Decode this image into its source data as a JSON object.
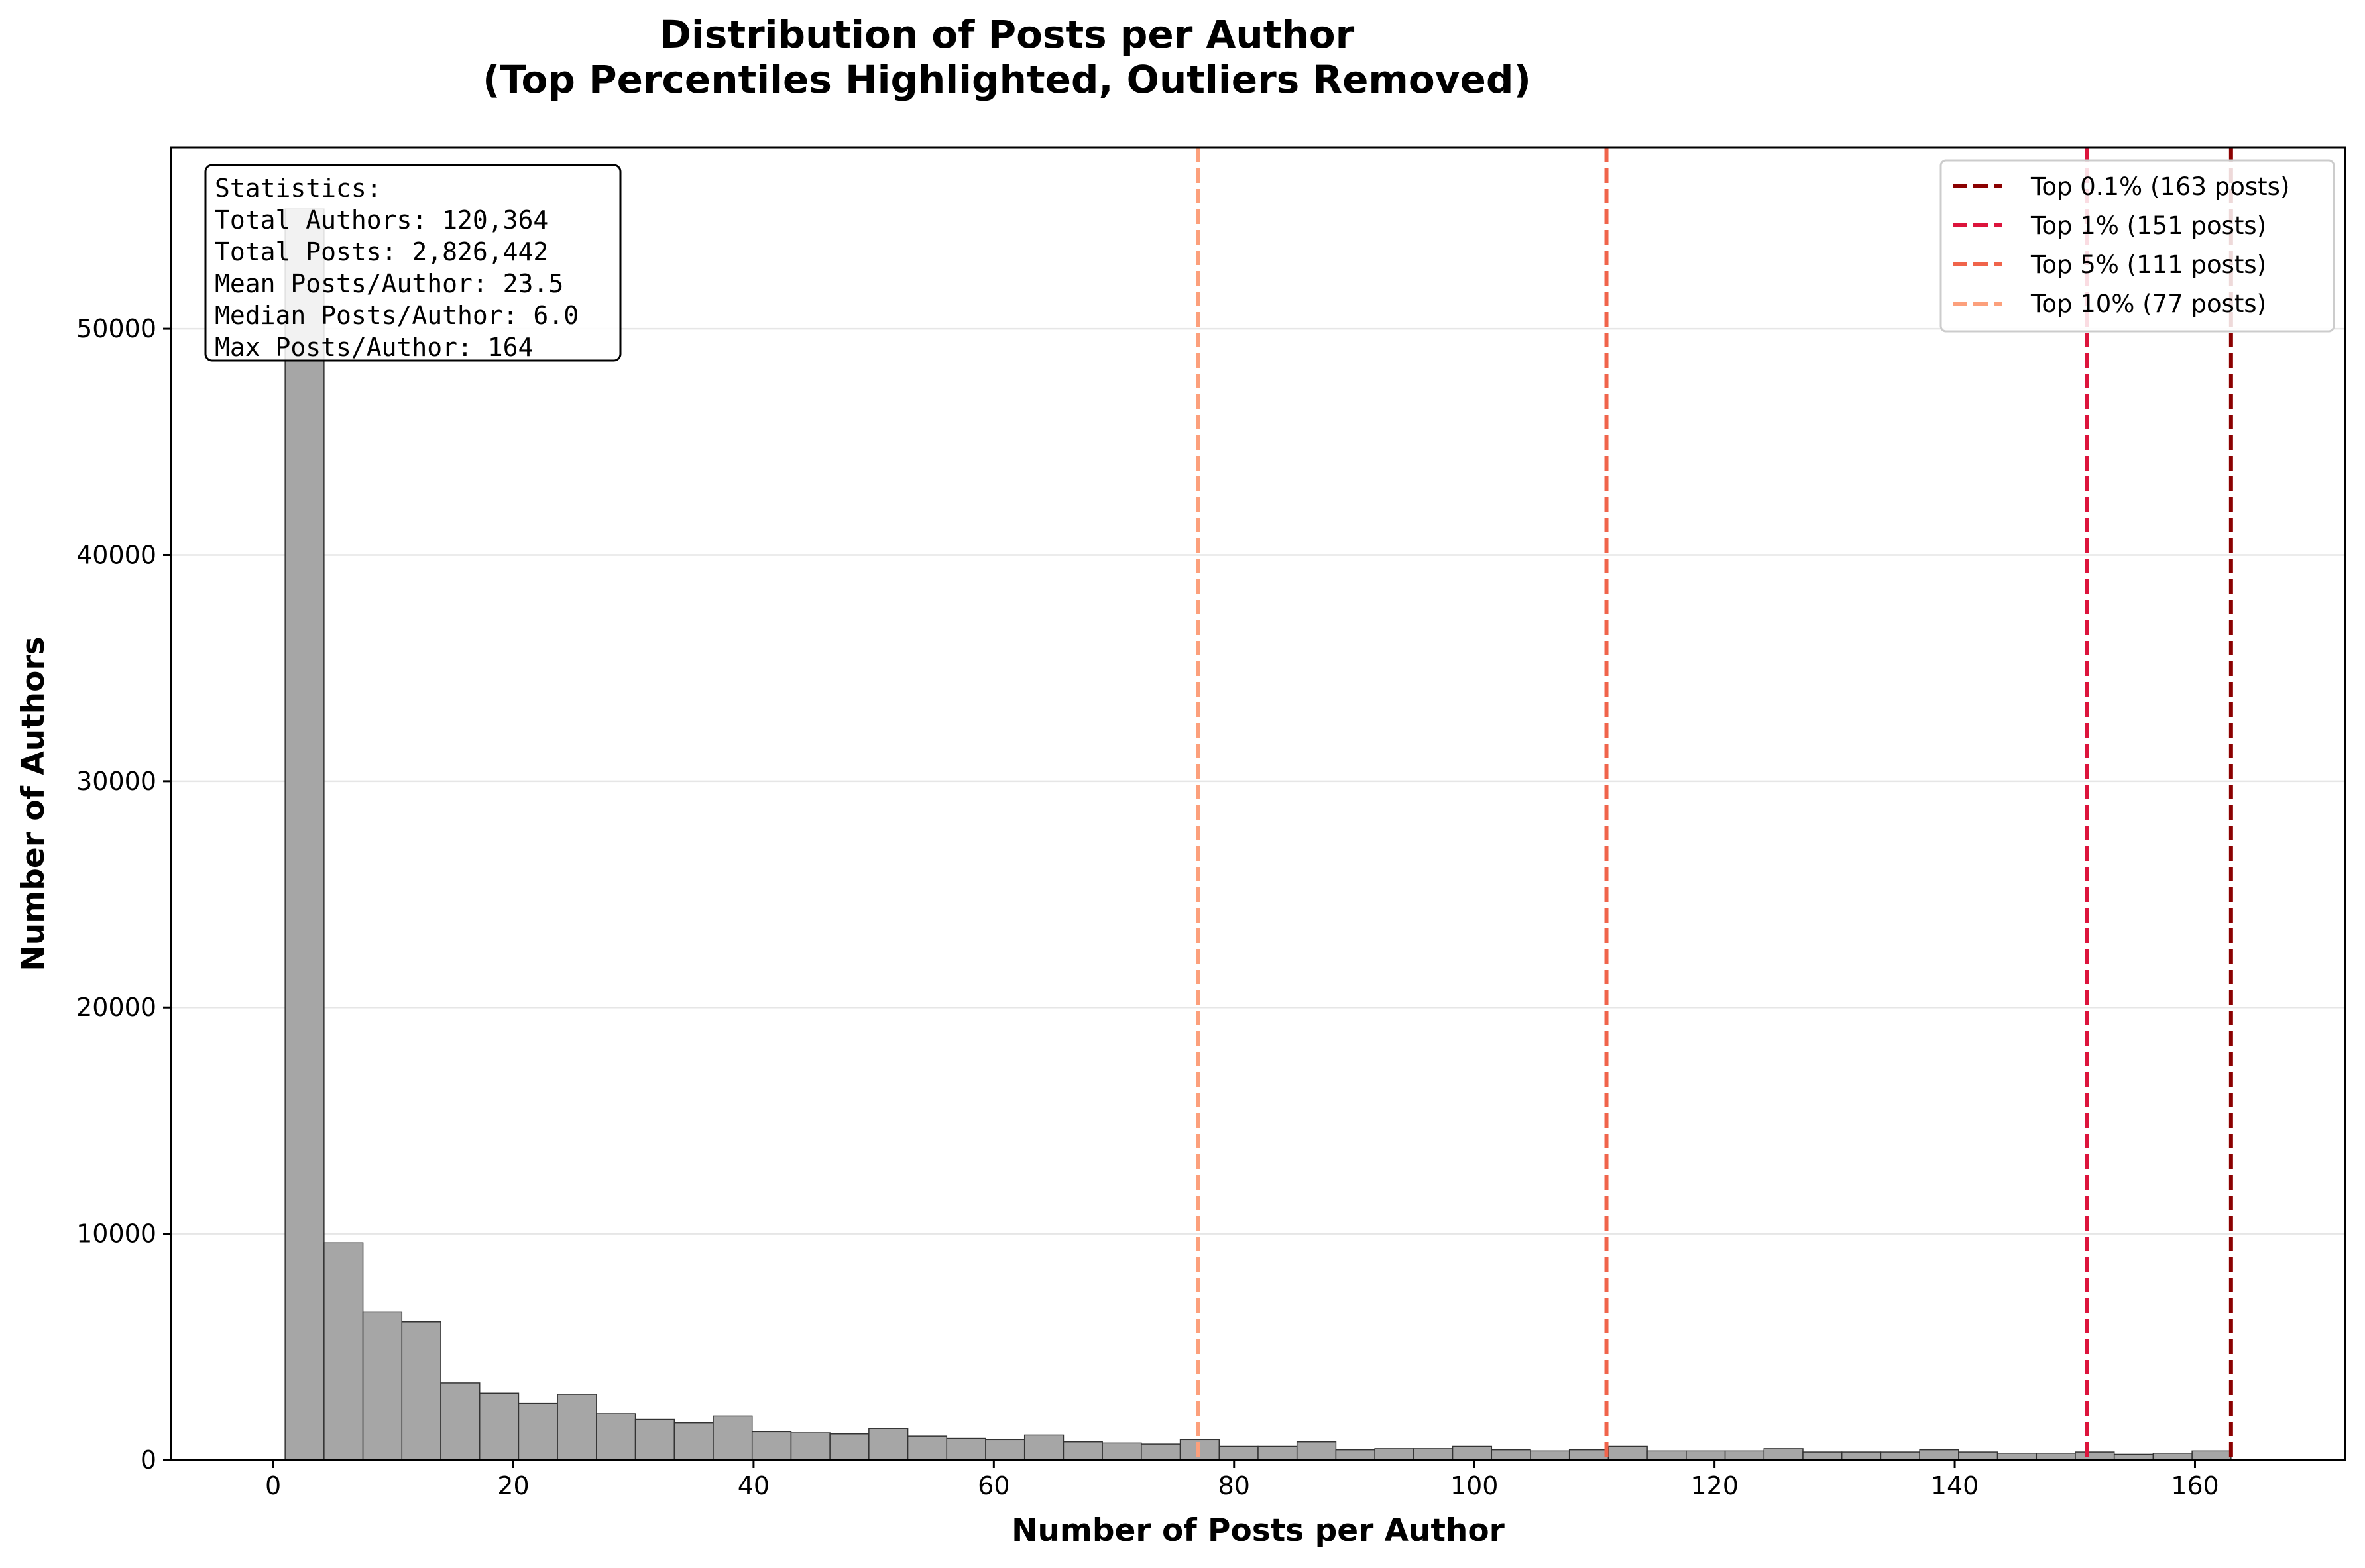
{
  "chart_data": {
    "type": "bar",
    "title_line1": "Distribution of Posts per Author",
    "title_line2": "(Top Percentiles Highlighted, Outliers Removed)",
    "xlabel": "Number of Posts per Author",
    "ylabel": "Number of Authors",
    "xlim": [
      -8.5,
      172.5
    ],
    "ylim": [
      0,
      58000
    ],
    "xticks": [
      0,
      20,
      40,
      60,
      80,
      100,
      120,
      140,
      160
    ],
    "yticks": [
      0,
      10000,
      20000,
      30000,
      40000,
      50000
    ],
    "grid": "y",
    "bin_start": 1,
    "bin_width": 3.24,
    "values": [
      55300,
      9600,
      6550,
      6100,
      3400,
      2950,
      2500,
      2900,
      2050,
      1800,
      1650,
      1950,
      1250,
      1200,
      1150,
      1400,
      1050,
      950,
      900,
      1100,
      800,
      750,
      700,
      900,
      600,
      600,
      800,
      450,
      500,
      500,
      600,
      450,
      400,
      450,
      600,
      400,
      400,
      400,
      500,
      350,
      350,
      350,
      450,
      350,
      300,
      300,
      350,
      250,
      300,
      400
    ],
    "bar_color": "#a6a6a6",
    "bar_edge_color": "#333333",
    "percentile_lines": [
      {
        "label": "Top 0.1% (163 posts)",
        "x": 163,
        "color": "#8b0000"
      },
      {
        "label": "Top 1% (151 posts)",
        "x": 151,
        "color": "#dc143c"
      },
      {
        "label": "Top 5% (111 posts)",
        "x": 111,
        "color": "#f0644b"
      },
      {
        "label": "Top 10% (77 posts)",
        "x": 77,
        "color": "#fca07c"
      }
    ],
    "legend_position": "top-right",
    "stats": [
      "Statistics:",
      "Total Authors: 120,364",
      "Total Posts: 2,826,442",
      "Mean Posts/Author: 23.5",
      "Median Posts/Author: 6.0",
      "Max Posts/Author: 164"
    ]
  }
}
